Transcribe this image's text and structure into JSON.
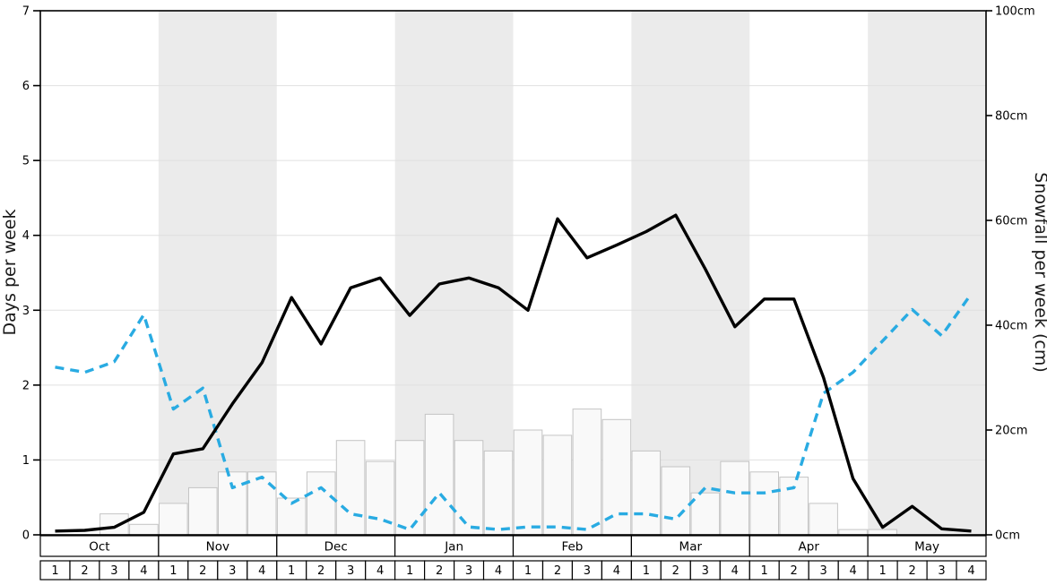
{
  "chart_data": {
    "type": "line",
    "title": "",
    "months": [
      "Oct",
      "Nov",
      "Dec",
      "Jan",
      "Feb",
      "Mar",
      "Apr",
      "May"
    ],
    "week_labels": [
      "1",
      "2",
      "3",
      "4"
    ],
    "shaded_month_indices": [
      1,
      3,
      5,
      7
    ],
    "band_color": "#ebebeb",
    "grid_color": "#e0e0e0",
    "left_axis": {
      "label": "Days per week",
      "min": 0,
      "max": 7,
      "ticks": [
        "0",
        "1",
        "2",
        "3",
        "4",
        "5",
        "6",
        "7"
      ]
    },
    "right_axis": {
      "label": "Snowfall per week (cm)",
      "min": 0,
      "max": 100,
      "ticks": [
        "0cm",
        "20cm",
        "40cm",
        "60cm",
        "80cm",
        "100cm"
      ]
    },
    "series": [
      {
        "name": "snow-days-per-week-line",
        "type": "line",
        "axis": "left",
        "color": "#000000",
        "dash": "solid",
        "values": [
          0.05,
          0.06,
          0.1,
          0.3,
          1.08,
          1.15,
          1.75,
          2.3,
          3.17,
          2.55,
          3.3,
          3.43,
          2.93,
          3.35,
          3.43,
          3.3,
          3.0,
          4.22,
          3.7,
          3.87,
          4.05,
          4.27,
          3.55,
          2.78,
          3.15,
          3.15,
          2.1,
          0.75,
          0.1,
          0.38,
          0.08,
          0.05
        ]
      },
      {
        "name": "snowfall-dashed-line",
        "type": "line",
        "axis": "right",
        "color": "#29abe2",
        "dash": "dashed",
        "values": [
          32,
          31,
          33,
          42,
          24,
          28,
          9,
          11,
          6,
          9,
          4,
          3,
          1,
          8,
          1.5,
          1,
          1.5,
          1.5,
          1,
          4,
          4,
          3,
          9,
          8,
          8,
          9,
          27,
          31,
          37,
          43,
          38,
          46
        ]
      },
      {
        "name": "snowfall-per-week-bars",
        "type": "bar",
        "axis": "right",
        "color": "#f9f9f9",
        "border_color": "#c4c4c4",
        "values": [
          0,
          0,
          4,
          2,
          6,
          9,
          12,
          12,
          7,
          12,
          18,
          14,
          18,
          23,
          18,
          16,
          20,
          19,
          24,
          22,
          16,
          13,
          8,
          14,
          12,
          11,
          6,
          1,
          1,
          0,
          0,
          0
        ]
      }
    ]
  }
}
